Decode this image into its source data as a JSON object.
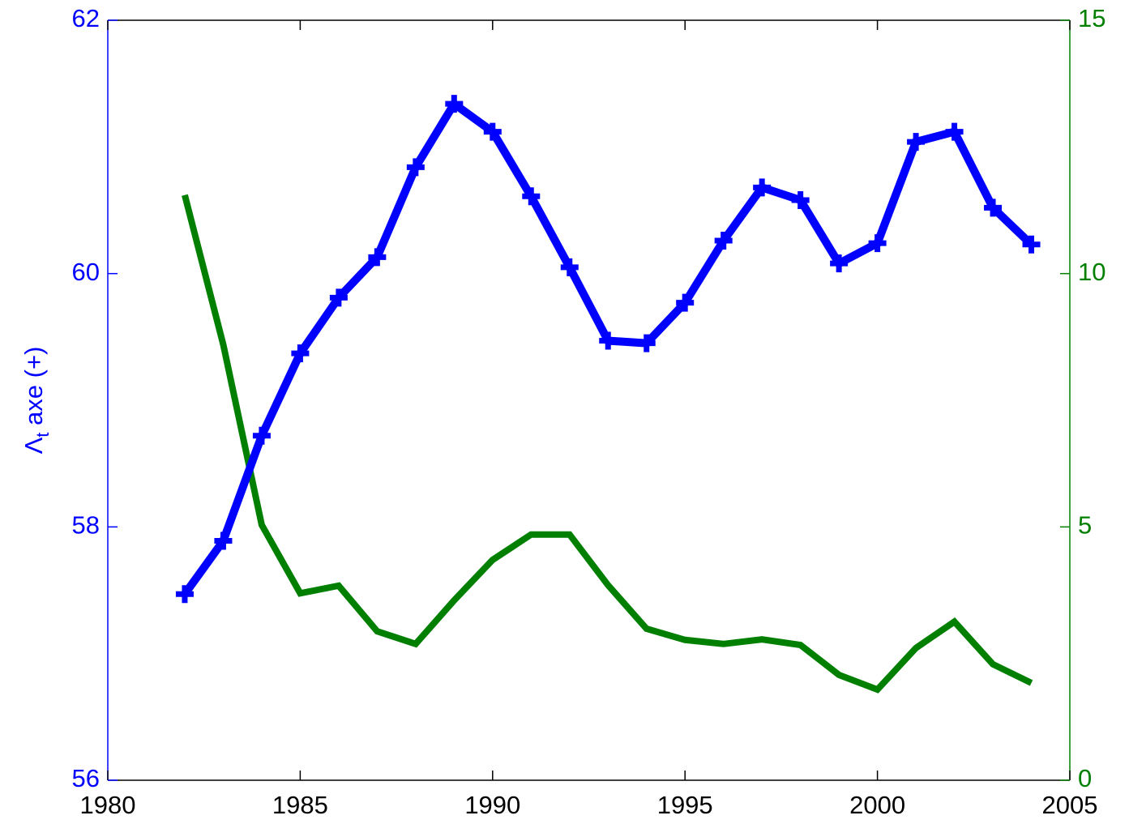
{
  "chart_data": {
    "type": "line",
    "ylabel": [
      "Λ",
      "t",
      " axe (+)"
    ],
    "x": [
      1982,
      1983,
      1984,
      1985,
      1986,
      1987,
      1988,
      1989,
      1990,
      1991,
      1992,
      1993,
      1994,
      1995,
      1996,
      1997,
      1998,
      1999,
      2000,
      2001,
      2002,
      2003,
      2004
    ],
    "series": [
      {
        "color": "#0000ff",
        "marker": "+",
        "axis": "y",
        "values": [
          57.47,
          57.89,
          58.72,
          59.37,
          59.81,
          60.13,
          60.84,
          61.34,
          61.12,
          60.61,
          60.05,
          59.47,
          59.45,
          59.77,
          60.26,
          60.68,
          60.58,
          60.08,
          60.24,
          61.04,
          61.12,
          60.52,
          60.23
        ]
      },
      {
        "color": "#007f00",
        "axis": "y2",
        "values": [
          11.55,
          8.6,
          5.04,
          3.69,
          3.84,
          2.94,
          2.69,
          3.55,
          4.35,
          4.85,
          4.85,
          3.85,
          2.99,
          2.77,
          2.69,
          2.78,
          2.67,
          2.08,
          1.79,
          2.61,
          3.13,
          2.29,
          1.92
        ]
      }
    ],
    "xlim": [
      1980,
      2005
    ],
    "xticks": [
      1980,
      1985,
      1990,
      1995,
      2000,
      2005
    ],
    "ylim": [
      56,
      62
    ],
    "yticks": [
      56,
      58,
      60,
      62
    ],
    "y2lim": [
      0,
      15
    ],
    "y2ticks": [
      0,
      5,
      10,
      15
    ]
  }
}
